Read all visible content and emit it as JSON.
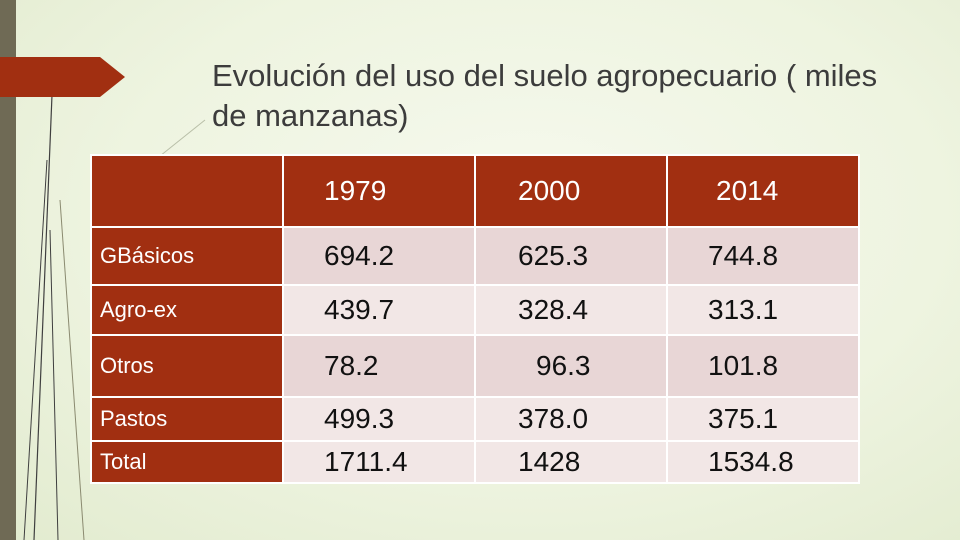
{
  "slide": {
    "title": "Evolución del uso del suelo agropecuario ( miles de manzanas)",
    "colors": {
      "header_bg": "#a12f11",
      "row_dark": "#e8d6d6",
      "row_light": "#f2e7e6",
      "left_bar": "#6f6a55"
    }
  },
  "table": {
    "corner": "",
    "columns": [
      "1979",
      "2000",
      "2014"
    ],
    "rows": [
      {
        "label": "GBásicos",
        "values": [
          "694.2",
          "625.3",
          "744.8"
        ]
      },
      {
        "label": "Agro-ex",
        "values": [
          "439.7",
          "328.4",
          "313.1"
        ]
      },
      {
        "label": "Otros",
        "values": [
          "78.2",
          "96.3",
          "101.8"
        ]
      },
      {
        "label": "Pastos",
        "values": [
          "499.3",
          "378.0",
          "375.1"
        ]
      },
      {
        "label": "Total",
        "values": [
          "1711.4",
          "1428",
          "1534.8"
        ]
      }
    ]
  }
}
